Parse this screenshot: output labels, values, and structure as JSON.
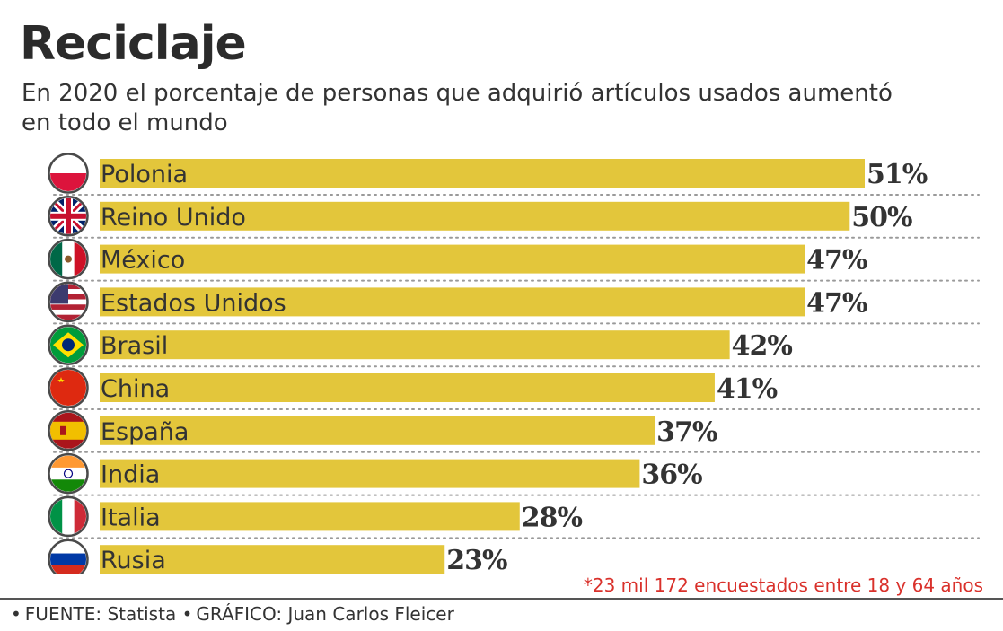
{
  "header": {
    "title": "Reciclaje",
    "subtitle": "En 2020 el porcentaje de personas que adquirió artículos usados aumentó en todo el mundo"
  },
  "colors": {
    "bar": "#e3c63b",
    "text": "#333333",
    "footnote": "#d9312b",
    "divider": "#9a9a9a"
  },
  "chart_data": {
    "type": "bar",
    "orientation": "horizontal",
    "title": "Reciclaje",
    "subtitle": "En 2020 el porcentaje de personas que adquirió artículos usados aumentó en todo el mundo",
    "xlabel": "",
    "ylabel": "",
    "unit": "%",
    "xlim": [
      0,
      55
    ],
    "grid": false,
    "categories": [
      "Polonia",
      "Reino Unido",
      "México",
      "Estados Unidos",
      "Brasil",
      "China",
      "España",
      "India",
      "Italia",
      "Rusia"
    ],
    "values": [
      51,
      50,
      47,
      47,
      42,
      41,
      37,
      36,
      28,
      23
    ],
    "value_labels": [
      "51%",
      "50%",
      "47%",
      "47%",
      "42%",
      "41%",
      "37%",
      "36%",
      "28%",
      "23%"
    ],
    "flag_icons": [
      "poland-flag-icon",
      "uk-flag-icon",
      "mexico-flag-icon",
      "usa-flag-icon",
      "brazil-flag-icon",
      "china-flag-icon",
      "spain-flag-icon",
      "india-flag-icon",
      "italy-flag-icon",
      "russia-flag-icon"
    ]
  },
  "footer": {
    "footnote": "*23 mil 172 encuestados entre 18 y 64 años",
    "bullet": "•",
    "source": "FUENTE: Statista",
    "graphic": "GRÁFICO: Juan Carlos Fleicer"
  }
}
